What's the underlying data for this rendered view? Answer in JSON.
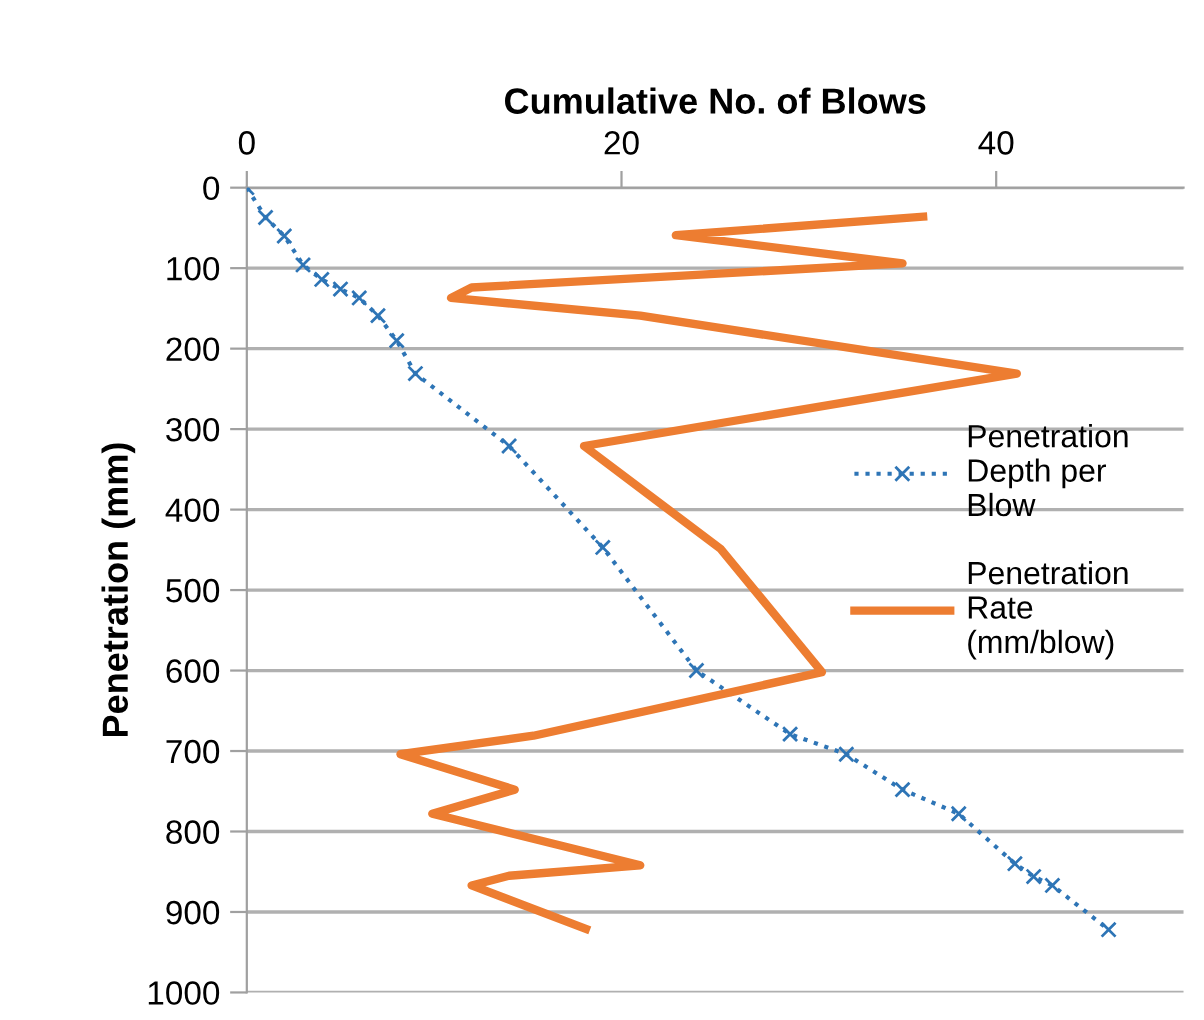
{
  "chart_data": {
    "type": "line",
    "xlabel": "Cumulative No. of Blows",
    "ylabel": "Penetration (mm)",
    "xlim": [
      0,
      50
    ],
    "xticks": [
      0,
      20,
      40
    ],
    "ylim": [
      1000,
      0
    ],
    "yticks": [
      0,
      100,
      200,
      300,
      400,
      500,
      600,
      700,
      800,
      900,
      1000
    ],
    "grid": "y",
    "legend": "right",
    "series": [
      {
        "name": "Penetration Depth per Blow",
        "color": "#2e75b6",
        "marker": "cross",
        "line_style": "dotted",
        "x": [
          0,
          1,
          2,
          3,
          4,
          5,
          6,
          7,
          8,
          9,
          14,
          19,
          24,
          29,
          32,
          35,
          38,
          41,
          42,
          43,
          46
        ],
        "values": [
          0,
          37,
          60,
          96,
          114,
          126,
          137,
          159,
          190,
          231,
          321,
          447,
          600,
          679,
          704,
          748,
          778,
          840,
          856,
          867,
          922
        ]
      },
      {
        "name": "Penetration Rate (mm/blow)",
        "color": "#ed7d31",
        "marker": "none",
        "line_style": "solid",
        "x": [
          36.1,
          22.9,
          35,
          12,
          10.9,
          21,
          41.1,
          18,
          25.3,
          30.7,
          15.3,
          8.2,
          14.3,
          9.9,
          21,
          14,
          12,
          18.1
        ],
        "values": [
          36,
          59,
          94,
          124,
          137,
          159,
          231,
          321,
          449,
          602,
          681,
          704,
          748,
          778,
          842,
          855,
          867,
          921
        ]
      }
    ]
  }
}
